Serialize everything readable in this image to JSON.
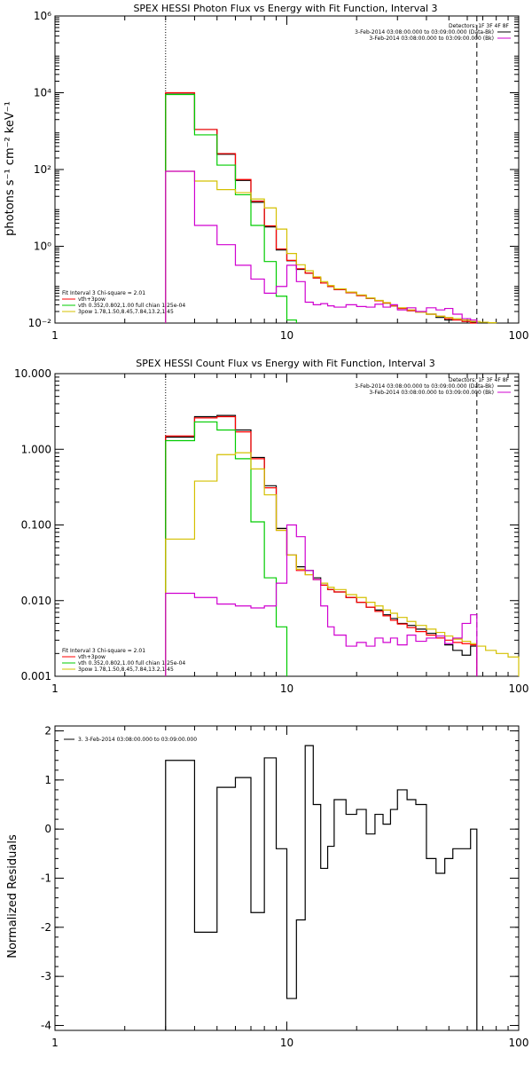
{
  "chart_data": [
    {
      "type": "line",
      "title": "SPEX HESSI Photon Flux vs Energy with Fit Function, Interval 3",
      "ylabel": "photons s⁻¹ cm⁻² keV⁻¹",
      "xlabel": "",
      "xscale": "log",
      "yscale": "log",
      "xlim": [
        1,
        100
      ],
      "ylim": [
        0.01,
        1000000
      ],
      "xtick_labels": [
        "1",
        "10",
        "100"
      ],
      "ytick_labels": [
        "10⁻²",
        "10⁰",
        "10²",
        "10⁴",
        "10⁶"
      ],
      "dotted_vline_x": 3,
      "dashed_vline_x": 66,
      "legend_top_right": [
        "Detectors: 1F 3F 4F 8F",
        "3-Feb-2014 03:08:00.000 to 03:09:00.000 (Data-Bk)",
        "3-Feb-2014 03:08:00.000 to 03:09:00.000 (Bk)"
      ],
      "legend_bottom_left": [
        "Fit Interval 3   Chi-square = 2.01",
        "vth+3pow",
        "vth 0.352,0.802,1.00  full chian 1.25e-04",
        "3pow 1.78,1.50,8.45,7.84,13.2,1.45"
      ],
      "series": [
        {
          "name": "Data-Bk",
          "color": "#000000",
          "edges": [
            3,
            4,
            5,
            6,
            7,
            8,
            9,
            10,
            11,
            12,
            13,
            14,
            15,
            16,
            18,
            20,
            22,
            24,
            26,
            28,
            30,
            33,
            36,
            40,
            44,
            48,
            52,
            57,
            62,
            66
          ],
          "values": [
            9800,
            1100,
            250,
            52,
            14,
            3.2,
            0.8,
            0.42,
            0.25,
            0.2,
            0.15,
            0.11,
            0.09,
            0.075,
            0.062,
            0.052,
            0.044,
            0.038,
            0.033,
            0.028,
            0.024,
            0.021,
            0.019,
            0.017,
            0.014,
            0.012,
            0.013,
            0.011,
            0.0105
          ]
        },
        {
          "name": "vth+3pow",
          "color": "#ff0000",
          "edges": [
            3,
            4,
            5,
            6,
            7,
            8,
            9,
            10,
            11,
            12,
            13,
            14,
            15,
            16,
            18,
            20,
            22,
            24,
            26,
            28,
            30,
            33,
            36,
            40,
            44,
            48,
            52,
            57,
            62,
            66
          ],
          "values": [
            10000,
            1100,
            260,
            55,
            15,
            3.4,
            0.85,
            0.43,
            0.26,
            0.2,
            0.15,
            0.11,
            0.09,
            0.075,
            0.062,
            0.052,
            0.044,
            0.038,
            0.033,
            0.028,
            0.024,
            0.021,
            0.019,
            0.017,
            0.015,
            0.013,
            0.012,
            0.011,
            0.01
          ]
        },
        {
          "name": "vth",
          "color": "#00cc00",
          "edges": [
            3,
            4,
            5,
            6,
            7,
            8,
            9,
            10,
            11
          ],
          "values": [
            9000,
            800,
            130,
            22,
            3.5,
            0.4,
            0.05,
            0.012
          ]
        },
        {
          "name": "3pow",
          "color": "#d4c000",
          "edges": [
            3,
            4,
            5,
            6,
            7,
            8,
            9,
            10,
            11,
            12,
            13,
            14,
            15,
            16,
            18,
            20,
            22,
            24,
            26,
            28,
            30,
            33,
            36,
            40,
            44,
            48,
            52,
            57,
            62,
            68,
            74,
            80
          ],
          "values": [
            90,
            50,
            30,
            25,
            17,
            10,
            2.8,
            0.65,
            0.33,
            0.23,
            0.16,
            0.12,
            0.095,
            0.078,
            0.064,
            0.054,
            0.045,
            0.039,
            0.034,
            0.029,
            0.025,
            0.022,
            0.019,
            0.017,
            0.015,
            0.014,
            0.013,
            0.012,
            0.011,
            0.0105,
            0.0102
          ]
        },
        {
          "name": "Bk",
          "color": "#d000d0",
          "edges": [
            3,
            4,
            5,
            6,
            7,
            8,
            9,
            10,
            11,
            12,
            13,
            14,
            15,
            16,
            18,
            20,
            22,
            24,
            26,
            28,
            30,
            33,
            36,
            40,
            44,
            48,
            52,
            57,
            62,
            66
          ],
          "values": [
            90,
            3.5,
            1.1,
            0.32,
            0.14,
            0.06,
            0.09,
            0.32,
            0.12,
            0.035,
            0.03,
            0.032,
            0.028,
            0.026,
            0.03,
            0.027,
            0.026,
            0.031,
            0.026,
            0.03,
            0.022,
            0.025,
            0.02,
            0.025,
            0.022,
            0.024,
            0.017,
            0.013,
            0.012
          ]
        }
      ]
    },
    {
      "type": "line",
      "title": "SPEX HESSI Count Flux vs Energy with Fit Function, Interval 3",
      "xscale": "log",
      "yscale": "log",
      "xlim": [
        1,
        100
      ],
      "ylim": [
        0.001,
        10
      ],
      "xtick_labels": [
        "1",
        "10",
        "100"
      ],
      "ytick_labels": [
        "0.001",
        "0.010",
        "0.100",
        "1.000",
        "10.000"
      ],
      "dotted_vline_x": 3,
      "dashed_vline_x": 66,
      "legend_top_right": [
        "Detectors: 1F 3F 4F 8F",
        "3-Feb-2014 03:08:00.000 to 03:09:00.000 (Data-Bk)",
        "3-Feb-2014 03:08:00.000 to 03:09:00.000 (Bk)"
      ],
      "legend_bottom_left": [
        "Fit Interval 3   Chi-square = 2.01",
        "vth+3pow",
        "vth 0.352,0.802,1.00  full chian 1.25e-04",
        "3pow 1.78,1.50,8.45,7.84,13.2,1.45"
      ],
      "series": [
        {
          "name": "Data-Bk",
          "color": "#000000",
          "edges": [
            3,
            4,
            5,
            6,
            7,
            8,
            9,
            10,
            11,
            12,
            13,
            14,
            15,
            16,
            18,
            20,
            22,
            24,
            26,
            28,
            30,
            33,
            36,
            40,
            44,
            48,
            52,
            57,
            62,
            66
          ],
          "values": [
            1.45,
            2.7,
            2.8,
            1.8,
            0.78,
            0.33,
            0.09,
            0.04,
            0.028,
            0.025,
            0.02,
            0.016,
            0.014,
            0.013,
            0.011,
            0.0095,
            0.0082,
            0.0075,
            0.0065,
            0.0058,
            0.005,
            0.0047,
            0.0042,
            0.0037,
            0.0032,
            0.0026,
            0.0022,
            0.0019,
            0.0025
          ]
        },
        {
          "name": "vth+3pow",
          "color": "#ff0000",
          "edges": [
            3,
            4,
            5,
            6,
            7,
            8,
            9,
            10,
            11,
            12,
            13,
            14,
            15,
            16,
            18,
            20,
            22,
            24,
            26,
            28,
            30,
            33,
            36,
            40,
            44,
            48,
            52,
            57,
            62,
            66
          ],
          "values": [
            1.5,
            2.6,
            2.7,
            1.7,
            0.75,
            0.31,
            0.085,
            0.04,
            0.025,
            0.022,
            0.019,
            0.016,
            0.014,
            0.013,
            0.011,
            0.0095,
            0.0082,
            0.0072,
            0.0063,
            0.0055,
            0.0049,
            0.0044,
            0.0039,
            0.0035,
            0.0032,
            0.003,
            0.0028,
            0.0027,
            0.0026
          ]
        },
        {
          "name": "vth",
          "color": "#00cc00",
          "edges": [
            3,
            4,
            5,
            6,
            7,
            8,
            9,
            10
          ],
          "values": [
            1.3,
            2.3,
            1.8,
            0.75,
            0.11,
            0.02,
            0.0045
          ]
        },
        {
          "name": "3pow",
          "color": "#d4c000",
          "edges": [
            3,
            4,
            5,
            6,
            7,
            8,
            9,
            10,
            11,
            12,
            13,
            14,
            15,
            16,
            18,
            20,
            22,
            24,
            26,
            28,
            30,
            33,
            36,
            40,
            44,
            48,
            52,
            57,
            62,
            66,
            72,
            80,
            90,
            100
          ],
          "values": [
            0.065,
            0.38,
            0.85,
            0.9,
            0.55,
            0.25,
            0.085,
            0.04,
            0.026,
            0.022,
            0.019,
            0.017,
            0.015,
            0.014,
            0.012,
            0.011,
            0.0095,
            0.0085,
            0.0075,
            0.0068,
            0.006,
            0.0053,
            0.0047,
            0.0042,
            0.0038,
            0.0034,
            0.0031,
            0.0029,
            0.0027,
            0.0025,
            0.0022,
            0.002,
            0.0018
          ]
        },
        {
          "name": "Bk",
          "color": "#d000d0",
          "edges": [
            3,
            4,
            5,
            6,
            7,
            8,
            9,
            10,
            11,
            12,
            13,
            14,
            15,
            16,
            18,
            20,
            22,
            24,
            26,
            28,
            30,
            33,
            36,
            40,
            44,
            48,
            52,
            57,
            62,
            66
          ],
          "values": [
            0.0125,
            0.011,
            0.009,
            0.0085,
            0.008,
            0.0085,
            0.017,
            0.1,
            0.07,
            0.025,
            0.019,
            0.0085,
            0.0045,
            0.0035,
            0.0025,
            0.0028,
            0.0025,
            0.0032,
            0.0028,
            0.0032,
            0.0026,
            0.0035,
            0.0029,
            0.0032,
            0.0034,
            0.0027,
            0.0032,
            0.005,
            0.0065
          ]
        }
      ]
    },
    {
      "type": "line",
      "ylabel": "Normalized Residuals",
      "xscale": "log",
      "xlim": [
        1,
        100
      ],
      "ylim": [
        -4.1,
        2.1
      ],
      "xtick_labels": [
        "1",
        "10",
        "100"
      ],
      "ytick_labels": [
        "-4",
        "-3",
        "-2",
        "-1",
        "0",
        "1",
        "2"
      ],
      "legend": [
        "3. 3-Feb-2014 03:08:00.000 to 03:09:00.000"
      ],
      "series": [
        {
          "name": "3. 3-Feb-2014 03:08:00.000 to 03:09:00.000",
          "color": "#000000",
          "edges": [
            3,
            4,
            5,
            6,
            7,
            8,
            9,
            10,
            11,
            12,
            13,
            14,
            15,
            16,
            18,
            20,
            22,
            24,
            26,
            28,
            30,
            33,
            36,
            40,
            44,
            48,
            52,
            57,
            62,
            66
          ],
          "values": [
            1.4,
            -2.1,
            0.85,
            1.05,
            -1.7,
            1.45,
            -0.4,
            -3.45,
            -1.85,
            1.7,
            0.5,
            -0.8,
            -0.35,
            0.6,
            0.3,
            0.4,
            -0.1,
            0.3,
            0.1,
            0.4,
            0.8,
            0.6,
            0.5,
            -0.6,
            -0.9,
            -0.6,
            -0.4,
            -0.4,
            0.0
          ]
        }
      ]
    }
  ]
}
